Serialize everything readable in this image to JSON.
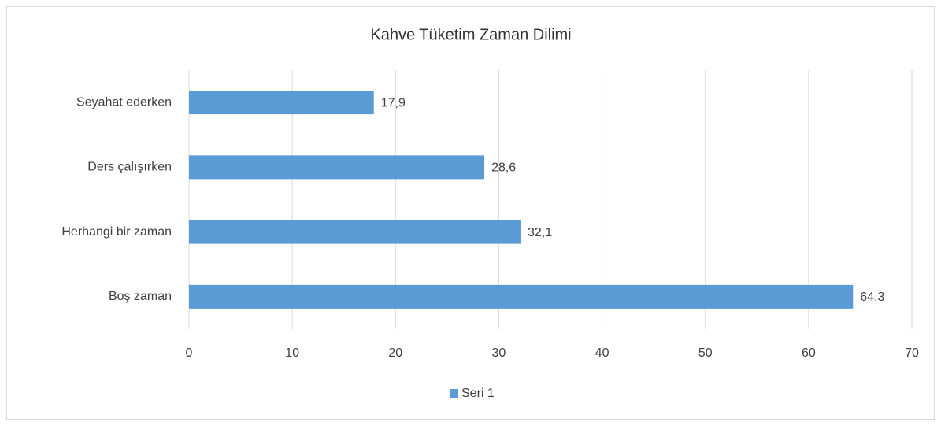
{
  "chart_data": {
    "type": "hbar",
    "title": "Kahve Tüketim Zaman Dilimi",
    "categories": [
      "Seyahat ederken",
      "Ders çalışırken",
      "Herhangi bir zaman",
      "Boş zaman"
    ],
    "series": [
      {
        "name": "Seri 1",
        "color": "#5b9bd5",
        "values": [
          17.9,
          28.6,
          32.1,
          64.3
        ],
        "value_labels": [
          "17,9",
          "28,6",
          "32,1",
          "64,3"
        ]
      }
    ],
    "xlim": [
      0,
      70
    ],
    "xticks": [
      0,
      10,
      20,
      30,
      40,
      50,
      60,
      70
    ],
    "grid": true,
    "legend": "bottom"
  }
}
